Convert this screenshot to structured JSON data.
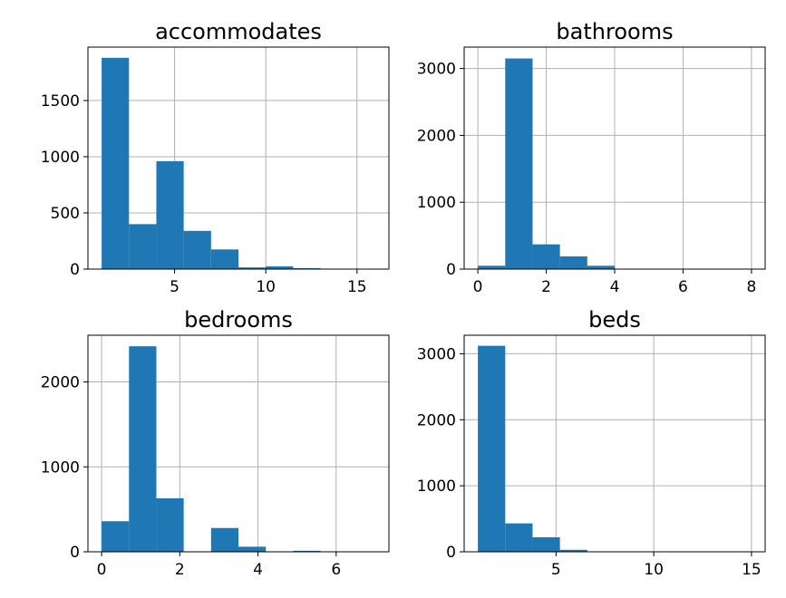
{
  "chart_data": [
    {
      "type": "histogram",
      "title": "accommodates",
      "xlim": [
        0.25,
        16.75
      ],
      "ylim": [
        0,
        1975
      ],
      "xticks": [
        5,
        10,
        15
      ],
      "yticks": [
        0,
        500,
        1000,
        1500
      ],
      "bins": [
        {
          "x0": 1.0,
          "x1": 2.5,
          "count": 1880
        },
        {
          "x0": 2.5,
          "x1": 4.0,
          "count": 400
        },
        {
          "x0": 4.0,
          "x1": 5.5,
          "count": 960
        },
        {
          "x0": 5.5,
          "x1": 7.0,
          "count": 340
        },
        {
          "x0": 7.0,
          "x1": 8.5,
          "count": 175
        },
        {
          "x0": 8.5,
          "x1": 10.0,
          "count": 15
        },
        {
          "x0": 10.0,
          "x1": 11.5,
          "count": 25
        },
        {
          "x0": 11.5,
          "x1": 13.0,
          "count": 8
        },
        {
          "x0": 13.0,
          "x1": 14.5,
          "count": 2
        },
        {
          "x0": 14.5,
          "x1": 16.0,
          "count": 2
        }
      ]
    },
    {
      "type": "histogram",
      "title": "bathrooms",
      "xlim": [
        -0.4,
        8.4
      ],
      "ylim": [
        0,
        3320
      ],
      "xticks": [
        0,
        2,
        4,
        6,
        8
      ],
      "yticks": [
        0,
        1000,
        2000,
        3000
      ],
      "bins": [
        {
          "x0": 0.0,
          "x1": 0.8,
          "count": 50
        },
        {
          "x0": 0.8,
          "x1": 1.6,
          "count": 3150
        },
        {
          "x0": 1.6,
          "x1": 2.4,
          "count": 370
        },
        {
          "x0": 2.4,
          "x1": 3.2,
          "count": 190
        },
        {
          "x0": 3.2,
          "x1": 4.0,
          "count": 50
        },
        {
          "x0": 4.0,
          "x1": 4.8,
          "count": 5
        },
        {
          "x0": 4.8,
          "x1": 5.6,
          "count": 3
        },
        {
          "x0": 5.6,
          "x1": 6.4,
          "count": 2
        },
        {
          "x0": 6.4,
          "x1": 7.2,
          "count": 1
        },
        {
          "x0": 7.2,
          "x1": 8.0,
          "count": 2
        }
      ]
    },
    {
      "type": "histogram",
      "title": "bedrooms",
      "xlim": [
        -0.35,
        7.35
      ],
      "ylim": [
        0,
        2550
      ],
      "xticks": [
        0,
        2,
        4,
        6
      ],
      "yticks": [
        0,
        1000,
        2000
      ],
      "bins": [
        {
          "x0": 0.0,
          "x1": 0.7,
          "count": 360
        },
        {
          "x0": 0.7,
          "x1": 1.4,
          "count": 2420
        },
        {
          "x0": 1.4,
          "x1": 2.1,
          "count": 630
        },
        {
          "x0": 2.1,
          "x1": 2.8,
          "count": 0
        },
        {
          "x0": 2.8,
          "x1": 3.5,
          "count": 280
        },
        {
          "x0": 3.5,
          "x1": 4.2,
          "count": 60
        },
        {
          "x0": 4.2,
          "x1": 4.9,
          "count": 0
        },
        {
          "x0": 4.9,
          "x1": 5.6,
          "count": 12
        },
        {
          "x0": 5.6,
          "x1": 6.3,
          "count": 0
        },
        {
          "x0": 6.3,
          "x1": 7.0,
          "count": 2
        }
      ]
    },
    {
      "type": "histogram",
      "title": "beds",
      "xlim": [
        0.3,
        15.7
      ],
      "ylim": [
        0,
        3280
      ],
      "xticks": [
        5,
        10,
        15
      ],
      "yticks": [
        0,
        1000,
        2000,
        3000
      ],
      "bins": [
        {
          "x0": 1.0,
          "x1": 2.4,
          "count": 3120
        },
        {
          "x0": 2.4,
          "x1": 3.8,
          "count": 430
        },
        {
          "x0": 3.8,
          "x1": 5.2,
          "count": 220
        },
        {
          "x0": 5.2,
          "x1": 6.6,
          "count": 30
        },
        {
          "x0": 6.6,
          "x1": 8.0,
          "count": 5
        },
        {
          "x0": 8.0,
          "x1": 9.4,
          "count": 3
        },
        {
          "x0": 9.4,
          "x1": 10.8,
          "count": 2
        },
        {
          "x0": 10.8,
          "x1": 12.2,
          "count": 1
        },
        {
          "x0": 12.2,
          "x1": 13.6,
          "count": 1
        },
        {
          "x0": 13.6,
          "x1": 15.0,
          "count": 1
        }
      ]
    }
  ],
  "colors": {
    "bar": "#1f77b4",
    "grid": "#b0b0b0",
    "frame": "#000000"
  }
}
